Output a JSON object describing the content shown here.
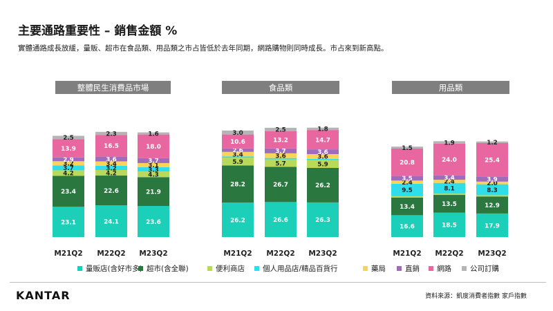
{
  "page": {
    "title": "主要通路重要性 – 銷售金額 %",
    "subtitle": "實體通路成長放緩，量販、超市在食品類、用品類之市占皆低於去年同期，網路購物則同時成長。市占來到新高點。",
    "logo": "KANTAR",
    "source": "資料來源：凱度消費者指數  家戶指數"
  },
  "colors": {
    "label_dark_bg": "#ffffff",
    "label_light_bg": "#222222",
    "panel_header_bg": "#7f7f7f",
    "panel_header_text": "#ffffff"
  },
  "chart_data": {
    "type": "bar",
    "stacked": true,
    "unit": "%",
    "series": [
      {
        "name": "量販店(含好市多)",
        "color": "#1ccfb8",
        "label_color": "#ffffff"
      },
      {
        "name": "超市(含全聯)",
        "color": "#2a7740",
        "label_color": "#ffffff"
      },
      {
        "name": "便利商店",
        "color": "#b8d95a",
        "label_color": "#222222"
      },
      {
        "name": "個人用品店/精品百貨行",
        "color": "#2fdeea",
        "label_color": "#222222"
      },
      {
        "name": "藥局",
        "color": "#fad35a",
        "label_color": "#222222"
      },
      {
        "name": "直銷",
        "color": "#9f6bbb",
        "label_color": "#ffffff"
      },
      {
        "name": "網路",
        "color": "#e967a1",
        "label_color": "#ffffff"
      },
      {
        "name": "公司訂購",
        "color": "#b5b5b5",
        "label_color": "#222222"
      }
    ],
    "panels": [
      {
        "title": "整體民生消費品市場",
        "categories": [
          "M21Q2",
          "M22Q2",
          "M23Q2"
        ],
        "values": [
          [
            23.1,
            23.4,
            4.2,
            3.7,
            3.2,
            2.9,
            13.9,
            2.5
          ],
          [
            24.1,
            22.6,
            4.2,
            3.2,
            3.4,
            3.6,
            16.5,
            2.3
          ],
          [
            23.6,
            21.9,
            4.3,
            3.3,
            3.1,
            3.7,
            18.0,
            1.6
          ]
        ]
      },
      {
        "title": "食品類",
        "categories": [
          "M21Q2",
          "M22Q2",
          "M23Q2"
        ],
        "values": [
          [
            26.2,
            28.2,
            5.9,
            1.0,
            3.4,
            2.6,
            10.6,
            3.0
          ],
          [
            26.6,
            26.7,
            5.7,
            1.0,
            3.6,
            3.7,
            13.2,
            2.5
          ],
          [
            26.3,
            26.2,
            5.9,
            1.0,
            3.6,
            3.6,
            14.7,
            1.8
          ]
        ],
        "hidden_labels": [
          [
            false,
            false,
            false,
            true,
            false,
            false,
            false,
            false
          ],
          [
            false,
            false,
            false,
            true,
            false,
            false,
            false,
            false
          ],
          [
            false,
            false,
            false,
            true,
            false,
            false,
            false,
            false
          ]
        ]
      },
      {
        "title": "用品類",
        "categories": [
          "M21Q2",
          "M22Q2",
          "M23Q2"
        ],
        "values": [
          [
            16.6,
            13.4,
            1.0,
            9.5,
            2.4,
            3.5,
            20.8,
            1.5
          ],
          [
            18.5,
            13.5,
            1.0,
            8.1,
            2.4,
            3.4,
            24.0,
            1.9
          ],
          [
            17.9,
            12.9,
            1.0,
            8.3,
            2.0,
            3.9,
            25.4,
            1.2
          ]
        ],
        "hidden_labels": [
          [
            false,
            false,
            true,
            false,
            false,
            false,
            false,
            false
          ],
          [
            false,
            false,
            true,
            false,
            false,
            false,
            false,
            false
          ],
          [
            false,
            false,
            true,
            false,
            false,
            false,
            false,
            false
          ]
        ]
      }
    ]
  }
}
